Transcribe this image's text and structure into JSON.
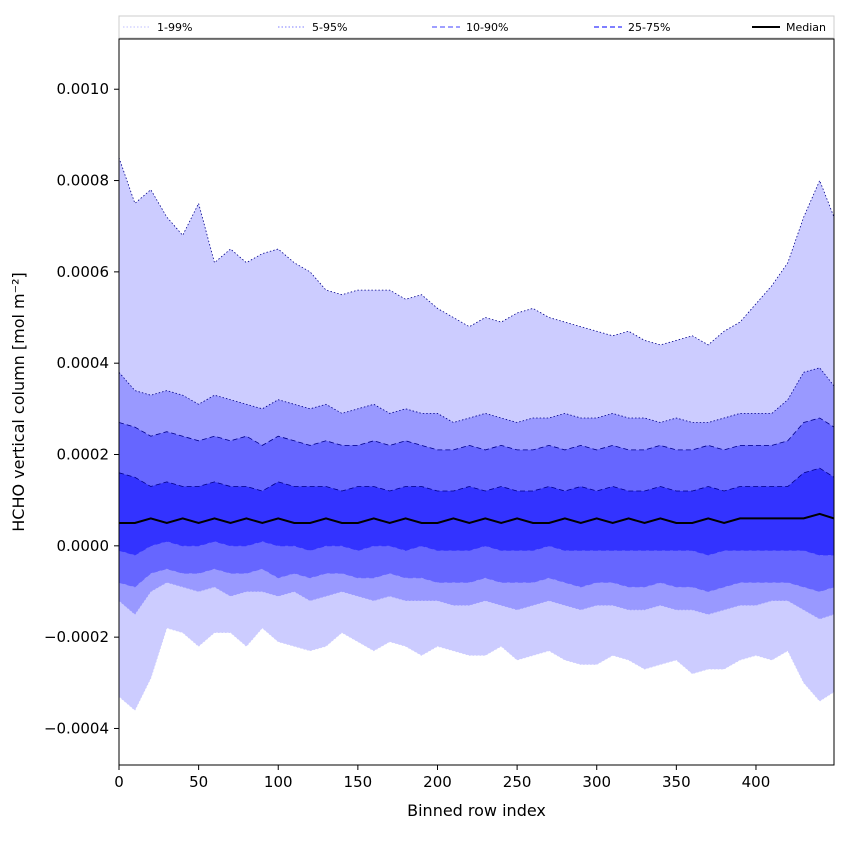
{
  "chart_data": {
    "type": "area",
    "title": "",
    "xlabel": "Binned row index",
    "ylabel": "HCHO vertical column [mol m⁻²]",
    "xlim": [
      0,
      449
    ],
    "ylim": [
      -0.00048,
      0.00111
    ],
    "x_ticks": [
      0,
      50,
      100,
      150,
      200,
      250,
      300,
      350,
      400
    ],
    "y_ticks": [
      -0.0004,
      -0.0002,
      0.0,
      0.0002,
      0.0004,
      0.0006,
      0.0008,
      0.001
    ],
    "y_tick_labels": [
      "−0.0004",
      "−0.0002",
      "0.0000",
      "0.0002",
      "0.0004",
      "0.0006",
      "0.0008",
      "0.0010"
    ],
    "grid": false,
    "legend_position": "top, above plot",
    "x": [
      0,
      10,
      20,
      30,
      40,
      50,
      60,
      70,
      80,
      90,
      100,
      110,
      120,
      130,
      140,
      150,
      160,
      170,
      180,
      190,
      200,
      210,
      220,
      230,
      240,
      250,
      260,
      270,
      280,
      290,
      300,
      310,
      320,
      330,
      340,
      350,
      360,
      370,
      380,
      390,
      400,
      410,
      420,
      430,
      440,
      449
    ],
    "series": [
      {
        "name": "1-99%",
        "style": "dotted",
        "color": "#ccccff",
        "upper": [
          0.00085,
          0.00075,
          0.00078,
          0.00072,
          0.00068,
          0.00075,
          0.00062,
          0.00065,
          0.00062,
          0.00064,
          0.00065,
          0.00062,
          0.0006,
          0.00056,
          0.00055,
          0.00056,
          0.00056,
          0.00056,
          0.00054,
          0.00055,
          0.00052,
          0.0005,
          0.00048,
          0.0005,
          0.00049,
          0.00051,
          0.00052,
          0.0005,
          0.00049,
          0.00048,
          0.00047,
          0.00046,
          0.00047,
          0.00045,
          0.00044,
          0.00045,
          0.00046,
          0.00044,
          0.00047,
          0.00049,
          0.00053,
          0.00057,
          0.00062,
          0.00072,
          0.0008,
          0.00072
        ],
        "lower": [
          -0.00033,
          -0.00036,
          -0.00029,
          -0.00018,
          -0.00019,
          -0.00022,
          -0.00019,
          -0.00019,
          -0.00022,
          -0.00018,
          -0.00021,
          -0.00022,
          -0.00023,
          -0.00022,
          -0.00019,
          -0.00021,
          -0.00023,
          -0.00021,
          -0.00022,
          -0.00024,
          -0.00022,
          -0.00023,
          -0.00024,
          -0.00024,
          -0.00022,
          -0.00025,
          -0.00024,
          -0.00023,
          -0.00025,
          -0.00026,
          -0.00026,
          -0.00024,
          -0.00025,
          -0.00027,
          -0.00026,
          -0.00025,
          -0.00028,
          -0.00027,
          -0.00027,
          -0.00025,
          -0.00024,
          -0.00025,
          -0.00023,
          -0.0003,
          -0.00034,
          -0.00032
        ]
      },
      {
        "name": "5-95%",
        "style": "dotted",
        "color": "#9999ff",
        "upper": [
          0.00038,
          0.00034,
          0.00033,
          0.00034,
          0.00033,
          0.00031,
          0.00033,
          0.00032,
          0.00031,
          0.0003,
          0.00032,
          0.00031,
          0.0003,
          0.00031,
          0.00029,
          0.0003,
          0.00031,
          0.00029,
          0.0003,
          0.00029,
          0.00029,
          0.00027,
          0.00028,
          0.00029,
          0.00028,
          0.00027,
          0.00028,
          0.00028,
          0.00029,
          0.00028,
          0.00028,
          0.00029,
          0.00028,
          0.00028,
          0.00027,
          0.00028,
          0.00027,
          0.00027,
          0.00028,
          0.00029,
          0.00029,
          0.00029,
          0.00032,
          0.00038,
          0.00039,
          0.00035
        ],
        "lower": [
          -0.00012,
          -0.00015,
          -0.0001,
          -8e-05,
          -9e-05,
          -0.0001,
          -9e-05,
          -0.00011,
          -0.0001,
          -0.0001,
          -0.00011,
          -0.0001,
          -0.00012,
          -0.00011,
          -0.0001,
          -0.00011,
          -0.00012,
          -0.00011,
          -0.00012,
          -0.00012,
          -0.00012,
          -0.00013,
          -0.00013,
          -0.00012,
          -0.00013,
          -0.00014,
          -0.00013,
          -0.00012,
          -0.00013,
          -0.00014,
          -0.00013,
          -0.00013,
          -0.00014,
          -0.00014,
          -0.00013,
          -0.00014,
          -0.00014,
          -0.00015,
          -0.00014,
          -0.00013,
          -0.00013,
          -0.00012,
          -0.00012,
          -0.00014,
          -0.00016,
          -0.00015
        ]
      },
      {
        "name": "10-90%",
        "style": "dashed",
        "color": "#6666ff",
        "upper": [
          0.00027,
          0.00026,
          0.00024,
          0.00025,
          0.00024,
          0.00023,
          0.00024,
          0.00023,
          0.00024,
          0.00022,
          0.00024,
          0.00023,
          0.00022,
          0.00023,
          0.00022,
          0.00022,
          0.00023,
          0.00022,
          0.00023,
          0.00022,
          0.00021,
          0.00021,
          0.00022,
          0.00021,
          0.00022,
          0.00021,
          0.00021,
          0.00022,
          0.00021,
          0.00022,
          0.00021,
          0.00022,
          0.00021,
          0.00021,
          0.00022,
          0.00021,
          0.00021,
          0.00022,
          0.00021,
          0.00022,
          0.00022,
          0.00022,
          0.00023,
          0.00027,
          0.00028,
          0.00026
        ],
        "lower": [
          -8e-05,
          -9e-05,
          -6e-05,
          -5e-05,
          -6e-05,
          -6e-05,
          -5e-05,
          -6e-05,
          -6e-05,
          -5e-05,
          -7e-05,
          -6e-05,
          -7e-05,
          -6e-05,
          -6e-05,
          -7e-05,
          -7e-05,
          -6e-05,
          -7e-05,
          -7e-05,
          -8e-05,
          -8e-05,
          -8e-05,
          -7e-05,
          -8e-05,
          -8e-05,
          -8e-05,
          -7e-05,
          -8e-05,
          -9e-05,
          -8e-05,
          -8e-05,
          -9e-05,
          -9e-05,
          -8e-05,
          -9e-05,
          -9e-05,
          -0.0001,
          -9e-05,
          -8e-05,
          -8e-05,
          -8e-05,
          -8e-05,
          -9e-05,
          -0.0001,
          -9e-05
        ]
      },
      {
        "name": "25-75%",
        "style": "dashed",
        "color": "#3333ff",
        "upper": [
          0.00016,
          0.00015,
          0.00013,
          0.00014,
          0.00013,
          0.00013,
          0.00014,
          0.00013,
          0.00013,
          0.00012,
          0.00014,
          0.00013,
          0.00013,
          0.00013,
          0.00012,
          0.00013,
          0.00013,
          0.00012,
          0.00013,
          0.00013,
          0.00012,
          0.00012,
          0.00013,
          0.00012,
          0.00013,
          0.00012,
          0.00012,
          0.00013,
          0.00012,
          0.00013,
          0.00012,
          0.00013,
          0.00012,
          0.00012,
          0.00013,
          0.00012,
          0.00012,
          0.00013,
          0.00012,
          0.00013,
          0.00013,
          0.00013,
          0.00013,
          0.00016,
          0.00017,
          0.00015
        ],
        "lower": [
          -1e-05,
          -2e-05,
          0.0,
          1e-05,
          0.0,
          0.0,
          1e-05,
          0.0,
          0.0,
          1e-05,
          0.0,
          0.0,
          -1e-05,
          0.0,
          0.0,
          -1e-05,
          0.0,
          0.0,
          -1e-05,
          0.0,
          -1e-05,
          -1e-05,
          -1e-05,
          0.0,
          -1e-05,
          -1e-05,
          -1e-05,
          0.0,
          -1e-05,
          -1e-05,
          -1e-05,
          -1e-05,
          -1e-05,
          -1e-05,
          -1e-05,
          -1e-05,
          -1e-05,
          -2e-05,
          -1e-05,
          -1e-05,
          -1e-05,
          -1e-05,
          -1e-05,
          -1e-05,
          -2e-05,
          -2e-05
        ]
      },
      {
        "name": "Median",
        "style": "solid",
        "color": "#000000",
        "values": [
          5e-05,
          5e-05,
          6e-05,
          5e-05,
          6e-05,
          5e-05,
          6e-05,
          5e-05,
          6e-05,
          5e-05,
          6e-05,
          5e-05,
          5e-05,
          6e-05,
          5e-05,
          5e-05,
          6e-05,
          5e-05,
          6e-05,
          5e-05,
          5e-05,
          6e-05,
          5e-05,
          6e-05,
          5e-05,
          6e-05,
          5e-05,
          5e-05,
          6e-05,
          5e-05,
          6e-05,
          5e-05,
          6e-05,
          5e-05,
          6e-05,
          5e-05,
          5e-05,
          6e-05,
          5e-05,
          6e-05,
          6e-05,
          6e-05,
          6e-05,
          6e-05,
          7e-05,
          6e-05
        ]
      }
    ],
    "colors": {
      "axis": "#000000",
      "legend_border": "#cccccc"
    }
  }
}
